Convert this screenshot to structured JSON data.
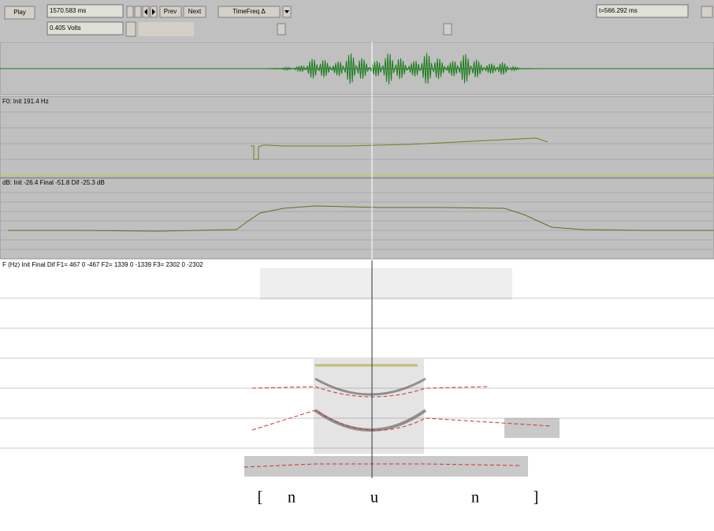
{
  "toolbar": {
    "play": "Play",
    "time": "1570.583 ms",
    "prev": "Prev",
    "next": "Next",
    "mode": "TimeFreq Δ",
    "volts": "0.405 Volts",
    "cursor_time": "t=566.292 ms"
  },
  "panels": {
    "f0": "F0: Init 191.4   Hz",
    "db": "dB: Init -26.4 Final -51.8 Dif -25.3 dB",
    "formants": "F (Hz) Init Final Dif  F1= 467  0  -467  F2= 1339  0 -1339  F3= 2302  0 -2302"
  },
  "transcription": [
    "[",
    "n",
    "u",
    "n",
    "]"
  ]
}
